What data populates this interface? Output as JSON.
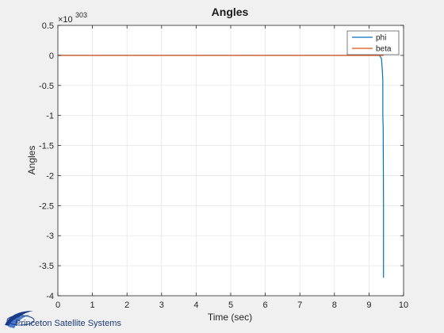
{
  "chart_data": {
    "type": "line",
    "title": "Angles",
    "xlabel": "Time (sec)",
    "ylabel": "Angles",
    "y_exponent_label": "×10",
    "y_exponent_power": "303",
    "xlim": [
      0,
      10
    ],
    "ylim": [
      -4,
      0.5
    ],
    "x_ticks": [
      0,
      1,
      2,
      3,
      4,
      5,
      6,
      7,
      8,
      9,
      10
    ],
    "y_ticks": [
      0.5,
      0,
      -0.5,
      -1,
      -1.5,
      -2,
      -2.5,
      -3,
      -3.5,
      -4
    ],
    "y_tick_labels": [
      "0.5",
      "0",
      "-0.5",
      "-1",
      "-1.5",
      "-2",
      "-2.5",
      "-3",
      "-3.5",
      "-4"
    ],
    "grid": true,
    "legend_position": "top-right",
    "series": [
      {
        "name": "phi",
        "color": "#0072bd",
        "x": [
          0,
          9.0,
          9.3,
          9.36,
          9.38,
          9.4,
          9.4,
          9.41,
          9.42,
          9.42
        ],
        "y": [
          0,
          0,
          0,
          -0.05,
          -0.2,
          -0.4,
          -1.0,
          -1.2,
          -2.5,
          -3.7
        ]
      },
      {
        "name": "beta",
        "color": "#d95319",
        "x": [
          0,
          9.42
        ],
        "y": [
          0,
          0
        ]
      }
    ]
  },
  "footer": {
    "brand": "Princeton Satellite Systems"
  }
}
